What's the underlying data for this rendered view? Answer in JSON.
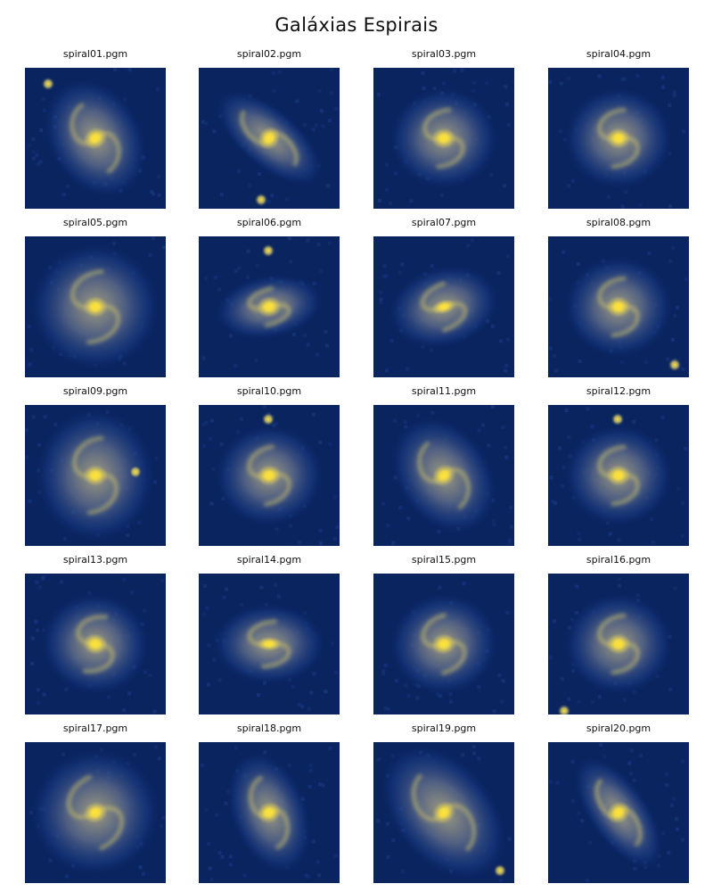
{
  "figure": {
    "title": "Galáxias Espirais"
  },
  "colors": {
    "background": "#0a2460",
    "noise": "#1b3d86",
    "halo": "#5d6a88",
    "disk": "#a8a381",
    "arm": "#d0c46a",
    "core": "#ffe33a"
  },
  "galaxies": [
    {
      "label": "spiral01.pgm",
      "shape": "inclined-spiral",
      "rotation_deg": -30,
      "companion": "top-left"
    },
    {
      "label": "spiral02.pgm",
      "shape": "edge-elongated",
      "rotation_deg": -50,
      "companion": "bottom"
    },
    {
      "label": "spiral03.pgm",
      "shape": "round-spiral",
      "rotation_deg": 0,
      "companion": ""
    },
    {
      "label": "spiral04.pgm",
      "shape": "round-diffuse",
      "rotation_deg": 0,
      "companion": ""
    },
    {
      "label": "spiral05.pgm",
      "shape": "grand-design",
      "rotation_deg": 0,
      "companion": ""
    },
    {
      "label": "spiral06.pgm",
      "shape": "oval-spiral",
      "rotation_deg": -10,
      "companion": "top"
    },
    {
      "label": "spiral07.pgm",
      "shape": "oval-barred",
      "rotation_deg": -15,
      "companion": ""
    },
    {
      "label": "spiral08.pgm",
      "shape": "round-diffuse",
      "rotation_deg": 0,
      "companion": "bottom-right"
    },
    {
      "label": "spiral09.pgm",
      "shape": "loose-spiral",
      "rotation_deg": 0,
      "companion": "right"
    },
    {
      "label": "spiral10.pgm",
      "shape": "round-diffuse",
      "rotation_deg": -5,
      "companion": "top"
    },
    {
      "label": "spiral11.pgm",
      "shape": "inclined-spiral",
      "rotation_deg": -35,
      "companion": ""
    },
    {
      "label": "spiral12.pgm",
      "shape": "round-diffuse",
      "rotation_deg": 0,
      "companion": "top"
    },
    {
      "label": "spiral13.pgm",
      "shape": "round-spiral",
      "rotation_deg": 10,
      "companion": ""
    },
    {
      "label": "spiral14.pgm",
      "shape": "oval-barred",
      "rotation_deg": 0,
      "companion": ""
    },
    {
      "label": "spiral15.pgm",
      "shape": "round-spiral",
      "rotation_deg": -10,
      "companion": ""
    },
    {
      "label": "spiral16.pgm",
      "shape": "round-diffuse",
      "rotation_deg": 0,
      "companion": "bottom-left"
    },
    {
      "label": "spiral17.pgm",
      "shape": "grand-design",
      "rotation_deg": -20,
      "companion": ""
    },
    {
      "label": "spiral18.pgm",
      "shape": "s-spiral",
      "rotation_deg": -20,
      "companion": ""
    },
    {
      "label": "spiral19.pgm",
      "shape": "large-inclined",
      "rotation_deg": -40,
      "companion": "bottom-right"
    },
    {
      "label": "spiral20.pgm",
      "shape": "edge-elongated",
      "rotation_deg": -35,
      "companion": ""
    }
  ]
}
